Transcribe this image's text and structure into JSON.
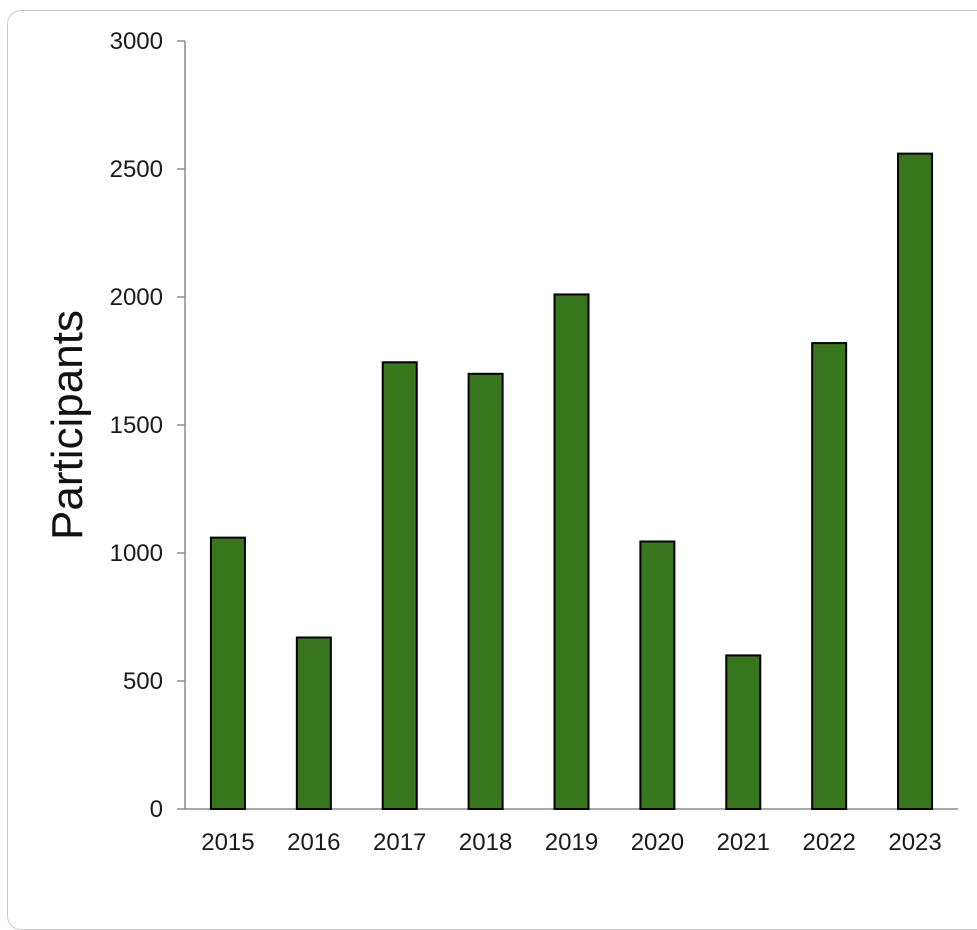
{
  "chart_data": {
    "type": "bar",
    "title": "",
    "xlabel": "",
    "ylabel": "Participants",
    "categories": [
      "2015",
      "2016",
      "2017",
      "2018",
      "2019",
      "2020",
      "2021",
      "2022",
      "2023"
    ],
    "values": [
      1060,
      670,
      1745,
      1700,
      2010,
      1045,
      600,
      1820,
      2560
    ],
    "ylim": [
      0,
      3000
    ],
    "yticks": [
      "0",
      "500",
      "1000",
      "1500",
      "2000",
      "2500",
      "3000"
    ],
    "grid": false,
    "legend": "none",
    "colors": {
      "bar_fill": "#38761d",
      "bar_stroke": "#000000",
      "axis": "#8c8c8c"
    }
  }
}
